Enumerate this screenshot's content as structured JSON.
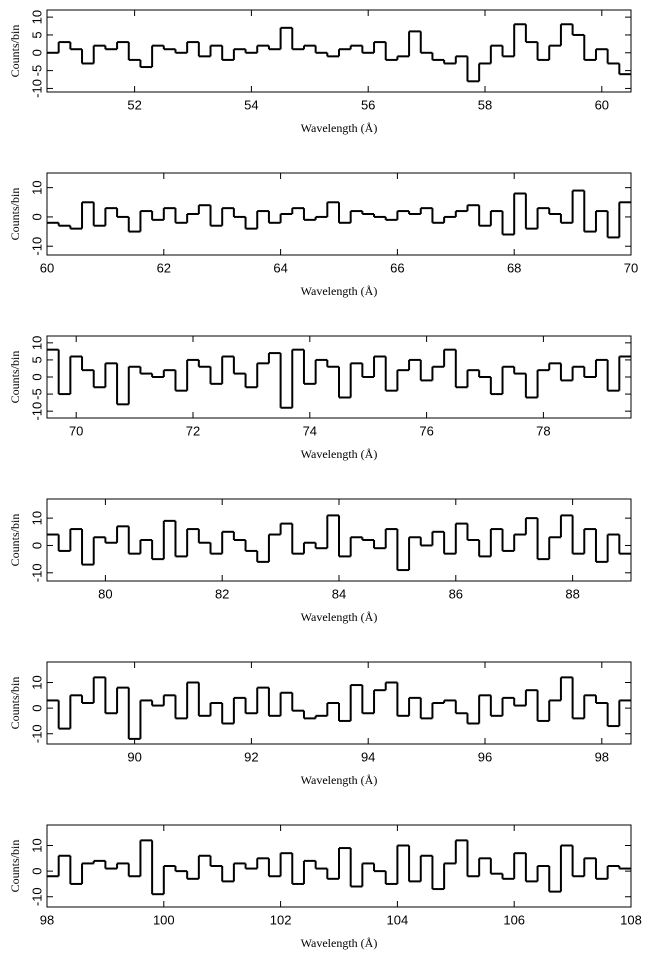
{
  "chart_data": [
    {
      "type": "histogram",
      "xlabel": "Wavelength (Å)",
      "ylabel": "Counts/bin",
      "color": "#000000",
      "bins": [
        50.5,
        50.7,
        50.9,
        51.1,
        51.3,
        51.5,
        51.7,
        51.9,
        52.1,
        52.3,
        52.5,
        52.7,
        52.9,
        53.1,
        53.3,
        53.5,
        53.7,
        53.9,
        54.1,
        54.3,
        54.5,
        54.7,
        54.9,
        55.1,
        55.3,
        55.5,
        55.7,
        55.9,
        56.1,
        56.3,
        56.5,
        56.7,
        56.9,
        57.1,
        57.3,
        57.5,
        57.7,
        57.9,
        58.1,
        58.3,
        58.5,
        58.7,
        58.9,
        59.1,
        59.3,
        59.5,
        59.7,
        59.9,
        60.1,
        60.3,
        60.5
      ],
      "values": [
        0,
        3,
        1,
        -3,
        2,
        1,
        3,
        -2,
        -4,
        2,
        1,
        0,
        3,
        -1,
        2,
        -2,
        1,
        0,
        2,
        1,
        7,
        1,
        2,
        0,
        -1,
        1,
        2,
        0,
        3,
        -2,
        -1,
        6,
        0,
        -2,
        -3,
        -1,
        -8,
        -3,
        2,
        -1,
        8,
        3,
        -2,
        2,
        8,
        5,
        -2,
        1,
        -3,
        -6
      ],
      "xlim": [
        50.5,
        60.5
      ],
      "ylim": [
        -11,
        12
      ],
      "xticks": [
        52,
        54,
        56,
        58,
        60
      ],
      "yticks": [
        -10,
        -5,
        0,
        5,
        10
      ]
    },
    {
      "type": "histogram",
      "xlabel": "Wavelength (Å)",
      "ylabel": "Counts/bin",
      "color": "#000000",
      "bins": [
        60,
        60.2,
        60.4,
        60.6,
        60.8,
        61,
        61.2,
        61.4,
        61.6,
        61.8,
        62,
        62.2,
        62.4,
        62.6,
        62.8,
        63,
        63.2,
        63.4,
        63.6,
        63.8,
        64,
        64.2,
        64.4,
        64.6,
        64.8,
        65,
        65.2,
        65.4,
        65.6,
        65.8,
        66,
        66.2,
        66.4,
        66.6,
        66.8,
        67,
        67.2,
        67.4,
        67.6,
        67.8,
        68,
        68.2,
        68.4,
        68.6,
        68.8,
        69,
        69.2,
        69.4,
        69.6,
        69.8,
        70
      ],
      "values": [
        -2,
        -3,
        -4,
        5,
        -3,
        3,
        0,
        -5,
        2,
        -1,
        3,
        -2,
        1,
        4,
        -3,
        3,
        0,
        -4,
        2,
        -2,
        1,
        3,
        -1,
        0,
        5,
        -2,
        2,
        1,
        0,
        -1,
        2,
        1,
        3,
        -2,
        0,
        2,
        4,
        -3,
        2,
        -6,
        8,
        -4,
        3,
        1,
        -2,
        9,
        -5,
        2,
        -7,
        5
      ],
      "xlim": [
        60,
        70
      ],
      "ylim": [
        -13,
        15
      ],
      "xticks": [
        60,
        62,
        64,
        66,
        68,
        70
      ],
      "yticks": [
        -10,
        0,
        10
      ]
    },
    {
      "type": "histogram",
      "xlabel": "Wavelength (Å)",
      "ylabel": "Counts/bin",
      "color": "#000000",
      "bins": [
        69.5,
        69.7,
        69.9,
        70.1,
        70.3,
        70.5,
        70.7,
        70.9,
        71.1,
        71.3,
        71.5,
        71.7,
        71.9,
        72.1,
        72.3,
        72.5,
        72.7,
        72.9,
        73.1,
        73.3,
        73.5,
        73.7,
        73.9,
        74.1,
        74.3,
        74.5,
        74.7,
        74.9,
        75.1,
        75.3,
        75.5,
        75.7,
        75.9,
        76.1,
        76.3,
        76.5,
        76.7,
        76.9,
        77.1,
        77.3,
        77.5,
        77.7,
        77.9,
        78.1,
        78.3,
        78.5,
        78.7,
        78.9,
        79.1,
        79.3,
        79.5
      ],
      "values": [
        8,
        -5,
        6,
        2,
        -3,
        4,
        -8,
        3,
        1,
        0,
        2,
        -4,
        5,
        3,
        -2,
        6,
        1,
        -3,
        4,
        7,
        -9,
        8,
        -2,
        5,
        3,
        -6,
        4,
        0,
        6,
        -4,
        2,
        5,
        -1,
        3,
        8,
        -3,
        2,
        0,
        -5,
        3,
        1,
        -6,
        2,
        4,
        -1,
        3,
        0,
        5,
        -4,
        6
      ],
      "xlim": [
        69.5,
        79.5
      ],
      "ylim": [
        -12,
        12
      ],
      "xticks": [
        70,
        72,
        74,
        76,
        78
      ],
      "yticks": [
        -10,
        -5,
        0,
        5,
        10
      ]
    },
    {
      "type": "histogram",
      "xlabel": "Wavelength (Å)",
      "ylabel": "Counts/bin",
      "color": "#000000",
      "bins": [
        79,
        79.2,
        79.4,
        79.6,
        79.8,
        80,
        80.2,
        80.4,
        80.6,
        80.8,
        81,
        81.2,
        81.4,
        81.6,
        81.8,
        82,
        82.2,
        82.4,
        82.6,
        82.8,
        83,
        83.2,
        83.4,
        83.6,
        83.8,
        84,
        84.2,
        84.4,
        84.6,
        84.8,
        85,
        85.2,
        85.4,
        85.6,
        85.8,
        86,
        86.2,
        86.4,
        86.6,
        86.8,
        87,
        87.2,
        87.4,
        87.6,
        87.8,
        88,
        88.2,
        88.4,
        88.6,
        88.8,
        89
      ],
      "values": [
        4,
        -2,
        6,
        -7,
        3,
        1,
        7,
        -3,
        2,
        -5,
        9,
        -4,
        6,
        1,
        -3,
        5,
        2,
        -2,
        -6,
        4,
        8,
        -3,
        1,
        -1,
        11,
        -4,
        3,
        2,
        -1,
        6,
        -9,
        3,
        0,
        5,
        -3,
        8,
        2,
        -4,
        6,
        -2,
        4,
        10,
        -5,
        3,
        11,
        -3,
        6,
        -6,
        4,
        -3
      ],
      "xlim": [
        79,
        89
      ],
      "ylim": [
        -13,
        17
      ],
      "xticks": [
        80,
        82,
        84,
        86,
        88
      ],
      "yticks": [
        -10,
        0,
        10
      ]
    },
    {
      "type": "histogram",
      "xlabel": "Wavelength (Å)",
      "ylabel": "Counts/bin",
      "color": "#000000",
      "bins": [
        88.5,
        88.7,
        88.9,
        89.1,
        89.3,
        89.5,
        89.7,
        89.9,
        90.1,
        90.3,
        90.5,
        90.7,
        90.9,
        91.1,
        91.3,
        91.5,
        91.7,
        91.9,
        92.1,
        92.3,
        92.5,
        92.7,
        92.9,
        93.1,
        93.3,
        93.5,
        93.7,
        93.9,
        94.1,
        94.3,
        94.5,
        94.7,
        94.9,
        95.1,
        95.3,
        95.5,
        95.7,
        95.9,
        96.1,
        96.3,
        96.5,
        96.7,
        96.9,
        97.1,
        97.3,
        97.5,
        97.7,
        97.9,
        98.1,
        98.3,
        98.5
      ],
      "values": [
        3,
        -8,
        5,
        2,
        12,
        -2,
        8,
        -12,
        3,
        1,
        5,
        -4,
        10,
        -3,
        2,
        -6,
        4,
        -2,
        8,
        -3,
        6,
        -1,
        -4,
        -3,
        2,
        -5,
        9,
        -2,
        7,
        10,
        -3,
        4,
        -4,
        2,
        3,
        -2,
        -6,
        5,
        -3,
        4,
        1,
        7,
        -5,
        3,
        12,
        -4,
        5,
        2,
        -7,
        3
      ],
      "xlim": [
        88.5,
        98.5
      ],
      "ylim": [
        -14,
        18
      ],
      "xticks": [
        90,
        92,
        94,
        96,
        98
      ],
      "yticks": [
        -10,
        0,
        10
      ]
    },
    {
      "type": "histogram",
      "xlabel": "Wavelength (Å)",
      "ylabel": "Counts/bin",
      "color": "#000000",
      "bins": [
        98,
        98.2,
        98.4,
        98.6,
        98.8,
        99,
        99.2,
        99.4,
        99.6,
        99.8,
        100,
        100.2,
        100.4,
        100.6,
        100.8,
        101,
        101.2,
        101.4,
        101.6,
        101.8,
        102,
        102.2,
        102.4,
        102.6,
        102.8,
        103,
        103.2,
        103.4,
        103.6,
        103.8,
        104,
        104.2,
        104.4,
        104.6,
        104.8,
        105,
        105.2,
        105.4,
        105.6,
        105.8,
        106,
        106.2,
        106.4,
        106.6,
        106.8,
        107,
        107.2,
        107.4,
        107.6,
        107.8,
        108
      ],
      "values": [
        -2,
        6,
        -5,
        3,
        4,
        1,
        3,
        -2,
        12,
        -9,
        2,
        0,
        -3,
        6,
        2,
        -4,
        3,
        1,
        5,
        -2,
        7,
        -5,
        4,
        1,
        -3,
        9,
        -6,
        3,
        0,
        -5,
        10,
        -4,
        6,
        -7,
        3,
        12,
        -2,
        5,
        -1,
        -3,
        7,
        -4,
        2,
        -8,
        10,
        -2,
        5,
        -3,
        2,
        1
      ],
      "xlim": [
        98,
        108
      ],
      "ylim": [
        -14,
        18
      ],
      "xticks": [
        98,
        100,
        102,
        104,
        106,
        108
      ],
      "yticks": [
        -10,
        0,
        10
      ]
    }
  ]
}
